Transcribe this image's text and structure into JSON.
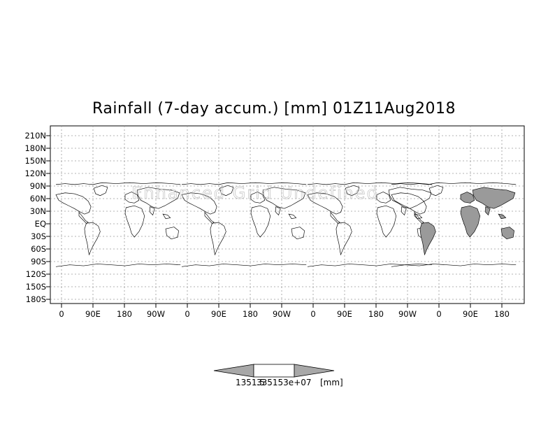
{
  "map": {
    "title": "Rainfall (7-day accum.) [mm] 01Z11Aug2018",
    "watermark": "Enhanced Grid Undefined",
    "y_ticks": [
      "210N",
      "180N",
      "150N",
      "120N",
      "90N",
      "60N",
      "30N",
      "EQ",
      "30S",
      "60S",
      "90S",
      "120S",
      "150S",
      "180S"
    ],
    "x_ticks": [
      "0",
      "90E",
      "180",
      "90W",
      "0",
      "90E",
      "180",
      "90W",
      "0",
      "90E",
      "180",
      "90W",
      "0",
      "90E",
      "180"
    ],
    "grid": true,
    "colors": {
      "background": "#ffffff",
      "land_outline": "#000000",
      "rain_fill": "#9a9a9a",
      "gridline": "#9a9a9a"
    }
  },
  "colorbar": {
    "value_label": "1351.5",
    "overlap_label": "335153e+07",
    "unit_label": "[mm]"
  }
}
